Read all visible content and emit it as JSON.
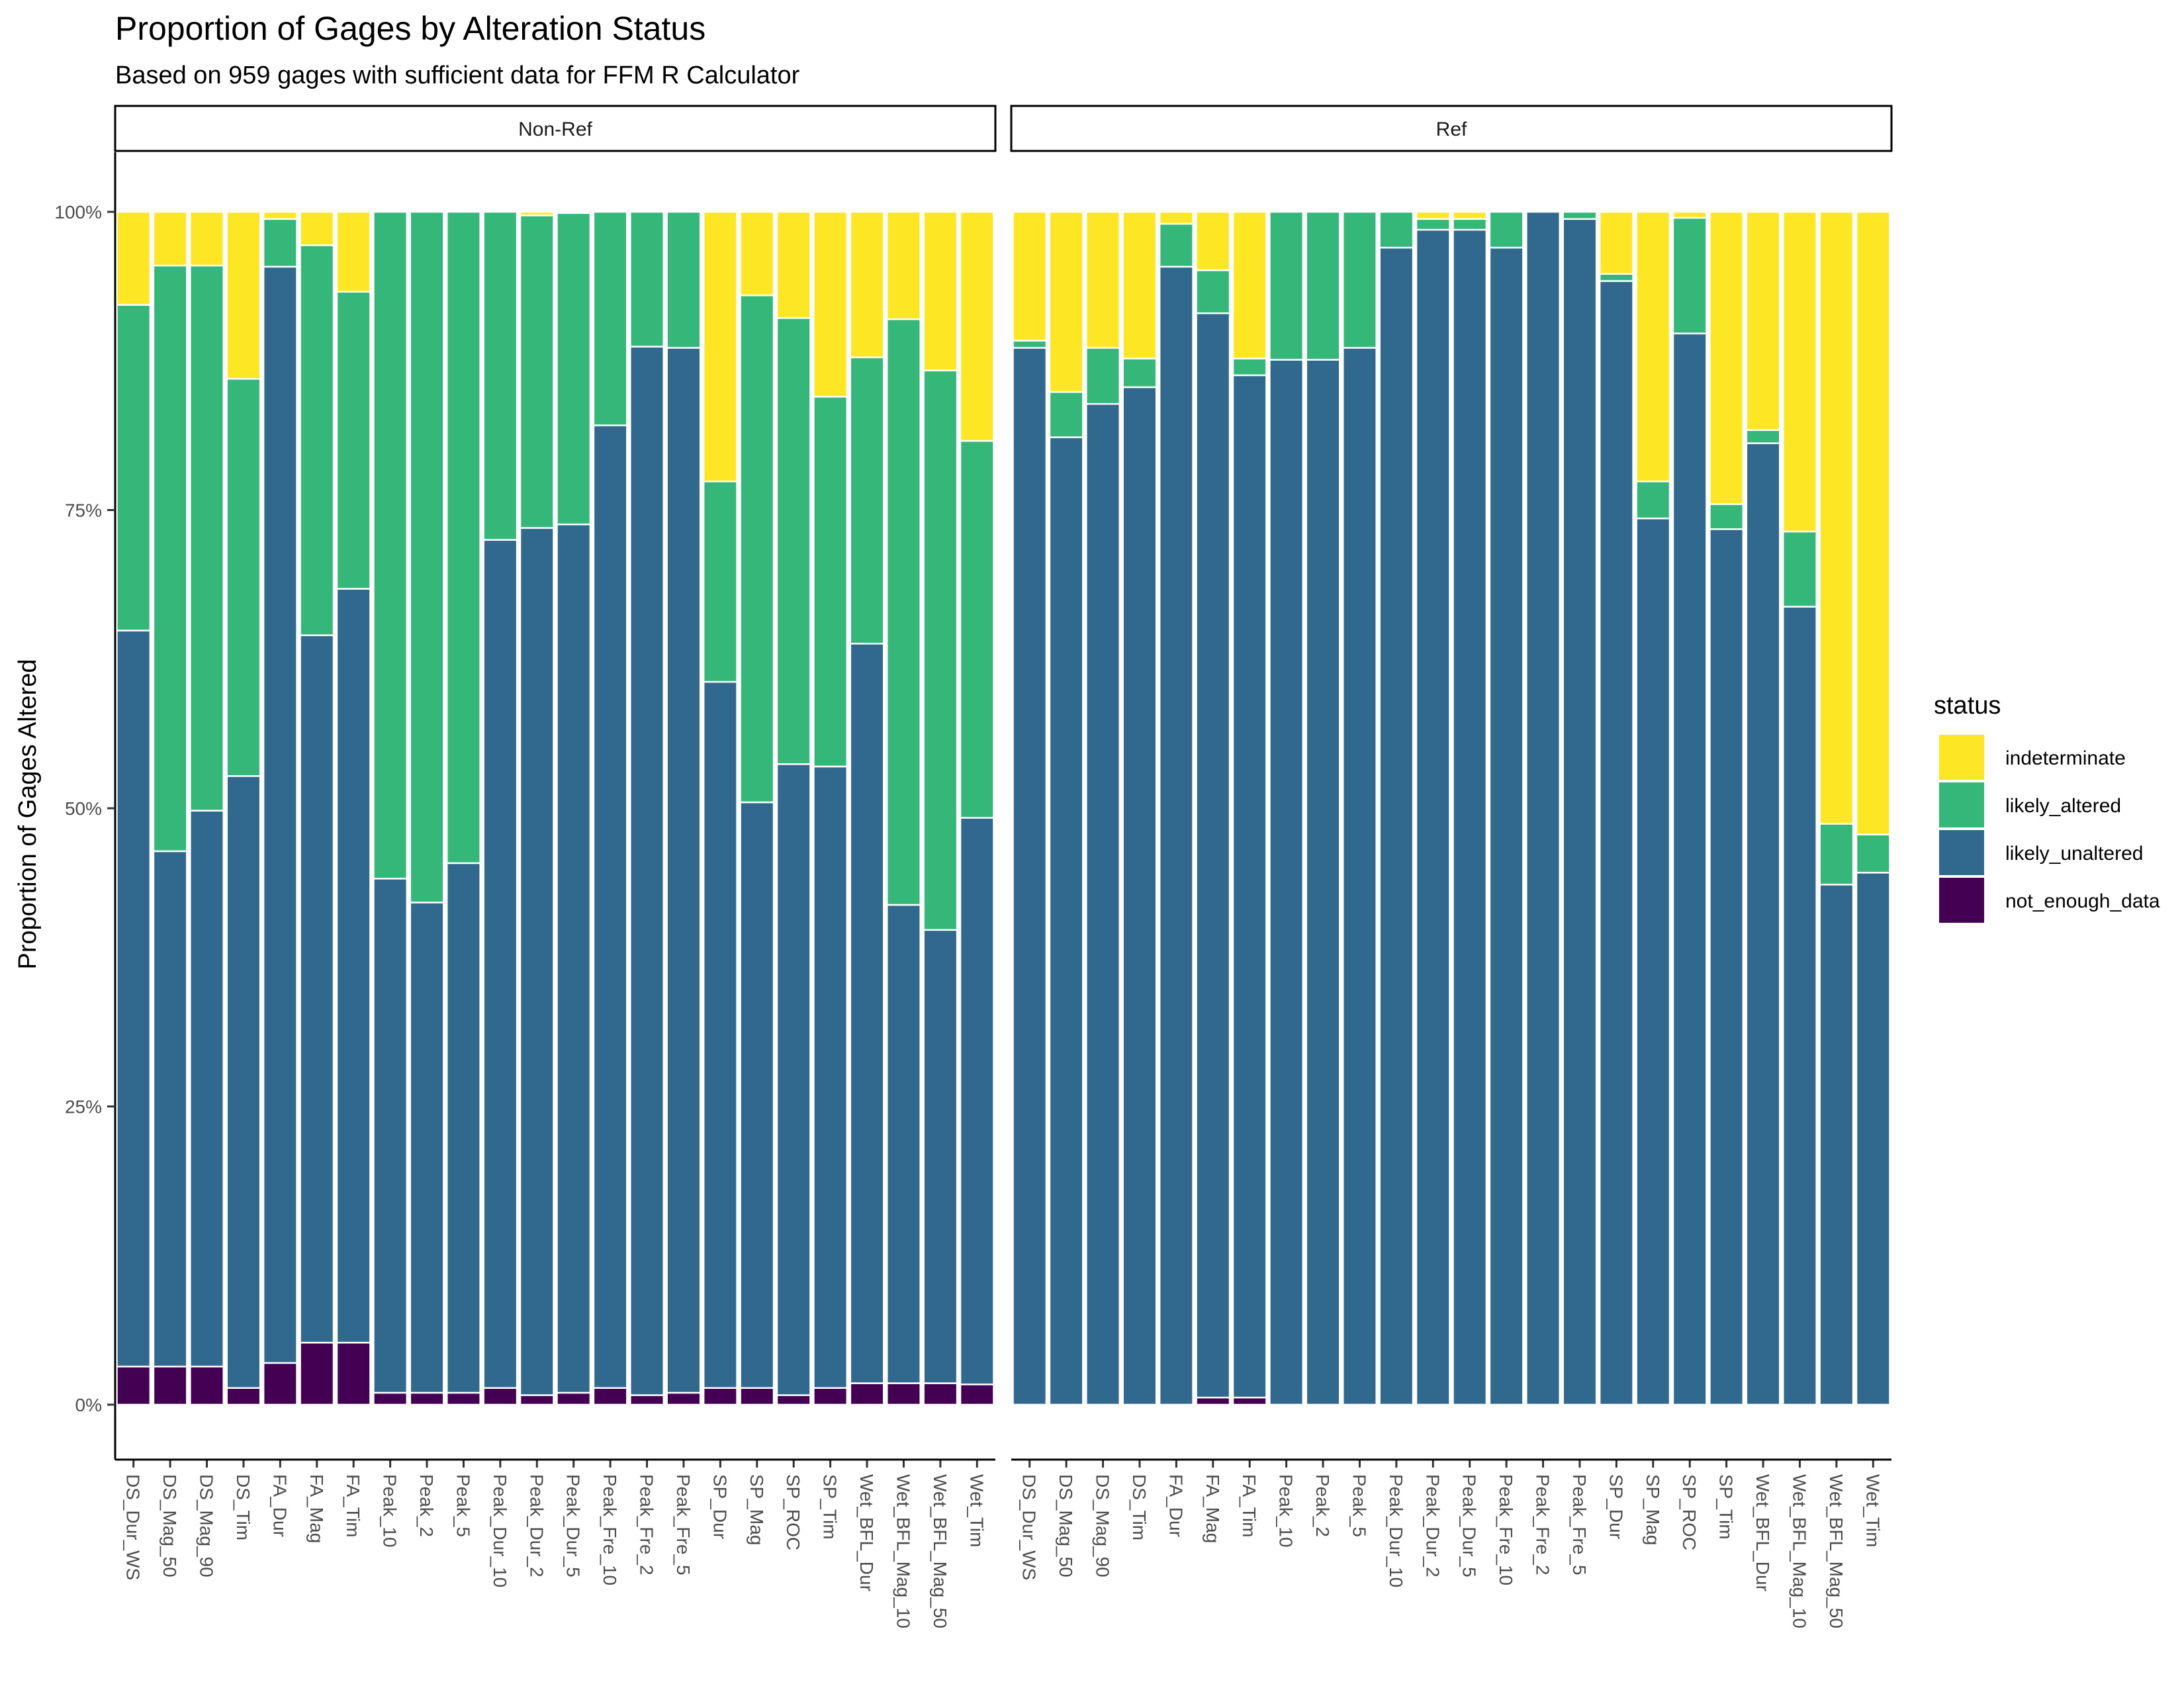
{
  "chart_data": {
    "type": "bar",
    "stacked": "percent",
    "title": "Proportion of Gages by Alteration Status",
    "subtitle": "Based on 959 gages with sufficient data for FFM R Calculator",
    "ylabel": "Proportion of Gages Altered",
    "ylim": [
      0,
      1
    ],
    "y_ticks": [
      "0%",
      "25%",
      "50%",
      "75%",
      "100%"
    ],
    "y_tick_values": [
      0,
      0.25,
      0.5,
      0.75,
      1.0
    ],
    "legend": {
      "title": "status",
      "position": "right",
      "entries": [
        "indeterminate",
        "likely_altered",
        "likely_unaltered",
        "not_enough_data"
      ]
    },
    "colors": {
      "indeterminate": "#fde725",
      "likely_altered": "#35b779",
      "likely_unaltered": "#31688e",
      "not_enough_data": "#440154"
    },
    "categories": [
      "DS_Dur_WS",
      "DS_Mag_50",
      "DS_Mag_90",
      "DS_Tim",
      "FA_Dur",
      "FA_Mag",
      "FA_Tim",
      "Peak_10",
      "Peak_2",
      "Peak_5",
      "Peak_Dur_10",
      "Peak_Dur_2",
      "Peak_Dur_5",
      "Peak_Fre_10",
      "Peak_Fre_2",
      "Peak_Fre_5",
      "SP_Dur",
      "SP_Mag",
      "SP_ROC",
      "SP_Tim",
      "Wet_BFL_Dur",
      "Wet_BFL_Mag_10",
      "Wet_BFL_Mag_50",
      "Wet_Tim"
    ],
    "panels": [
      {
        "label": "Non-Ref",
        "series": [
          {
            "name": "not_enough_data",
            "values": [
              0.032,
              0.032,
              0.032,
              0.014,
              0.035,
              0.052,
              0.052,
              0.01,
              0.01,
              0.01,
              0.014,
              0.008,
              0.01,
              0.014,
              0.008,
              0.01,
              0.014,
              0.014,
              0.008,
              0.014,
              0.018,
              0.018,
              0.018,
              0.017
            ]
          },
          {
            "name": "likely_unaltered",
            "values": [
              0.617,
              0.432,
              0.466,
              0.513,
              0.919,
              0.593,
              0.632,
              0.431,
              0.411,
              0.444,
              0.711,
              0.727,
              0.728,
              0.807,
              0.879,
              0.876,
              0.592,
              0.491,
              0.529,
              0.521,
              0.62,
              0.401,
              0.38,
              0.475
            ]
          },
          {
            "name": "likely_altered",
            "values": [
              0.273,
              0.491,
              0.457,
              0.333,
              0.04,
              0.327,
              0.249,
              0.559,
              0.579,
              0.546,
              0.275,
              0.262,
              0.261,
              0.179,
              0.113,
              0.114,
              0.168,
              0.425,
              0.374,
              0.31,
              0.24,
              0.491,
              0.469,
              0.316
            ]
          },
          {
            "name": "indeterminate",
            "values": [
              0.078,
              0.045,
              0.045,
              0.14,
              0.006,
              0.028,
              0.067,
              0.0,
              0.0,
              0.0,
              0.0,
              0.003,
              0.001,
              0.0,
              0.0,
              0.0,
              0.226,
              0.07,
              0.089,
              0.155,
              0.122,
              0.09,
              0.133,
              0.192
            ]
          }
        ]
      },
      {
        "label": "Ref",
        "series": [
          {
            "name": "not_enough_data",
            "values": [
              0,
              0,
              0,
              0,
              0,
              0.006,
              0.006,
              0,
              0,
              0,
              0,
              0,
              0,
              0,
              0,
              0,
              0,
              0,
              0,
              0,
              0,
              0,
              0,
              0
            ]
          },
          {
            "name": "likely_unaltered",
            "values": [
              0.886,
              0.811,
              0.839,
              0.853,
              0.954,
              0.909,
              0.857,
              0.876,
              0.876,
              0.886,
              0.97,
              0.985,
              0.985,
              0.97,
              1.0,
              0.994,
              0.942,
              0.743,
              0.898,
              0.734,
              0.806,
              0.669,
              0.436,
              0.446
            ]
          },
          {
            "name": "likely_altered",
            "values": [
              0.006,
              0.038,
              0.047,
              0.024,
              0.036,
              0.036,
              0.014,
              0.124,
              0.124,
              0.114,
              0.03,
              0.009,
              0.009,
              0.03,
              0.0,
              0.006,
              0.006,
              0.031,
              0.097,
              0.021,
              0.011,
              0.063,
              0.051,
              0.032
            ]
          },
          {
            "name": "indeterminate",
            "values": [
              0.108,
              0.151,
              0.114,
              0.123,
              0.01,
              0.049,
              0.123,
              0.0,
              0.0,
              0.0,
              0.0,
              0.006,
              0.006,
              0.0,
              0.0,
              0.0,
              0.052,
              0.226,
              0.005,
              0.245,
              0.183,
              0.268,
              0.513,
              0.522
            ]
          }
        ]
      }
    ]
  }
}
